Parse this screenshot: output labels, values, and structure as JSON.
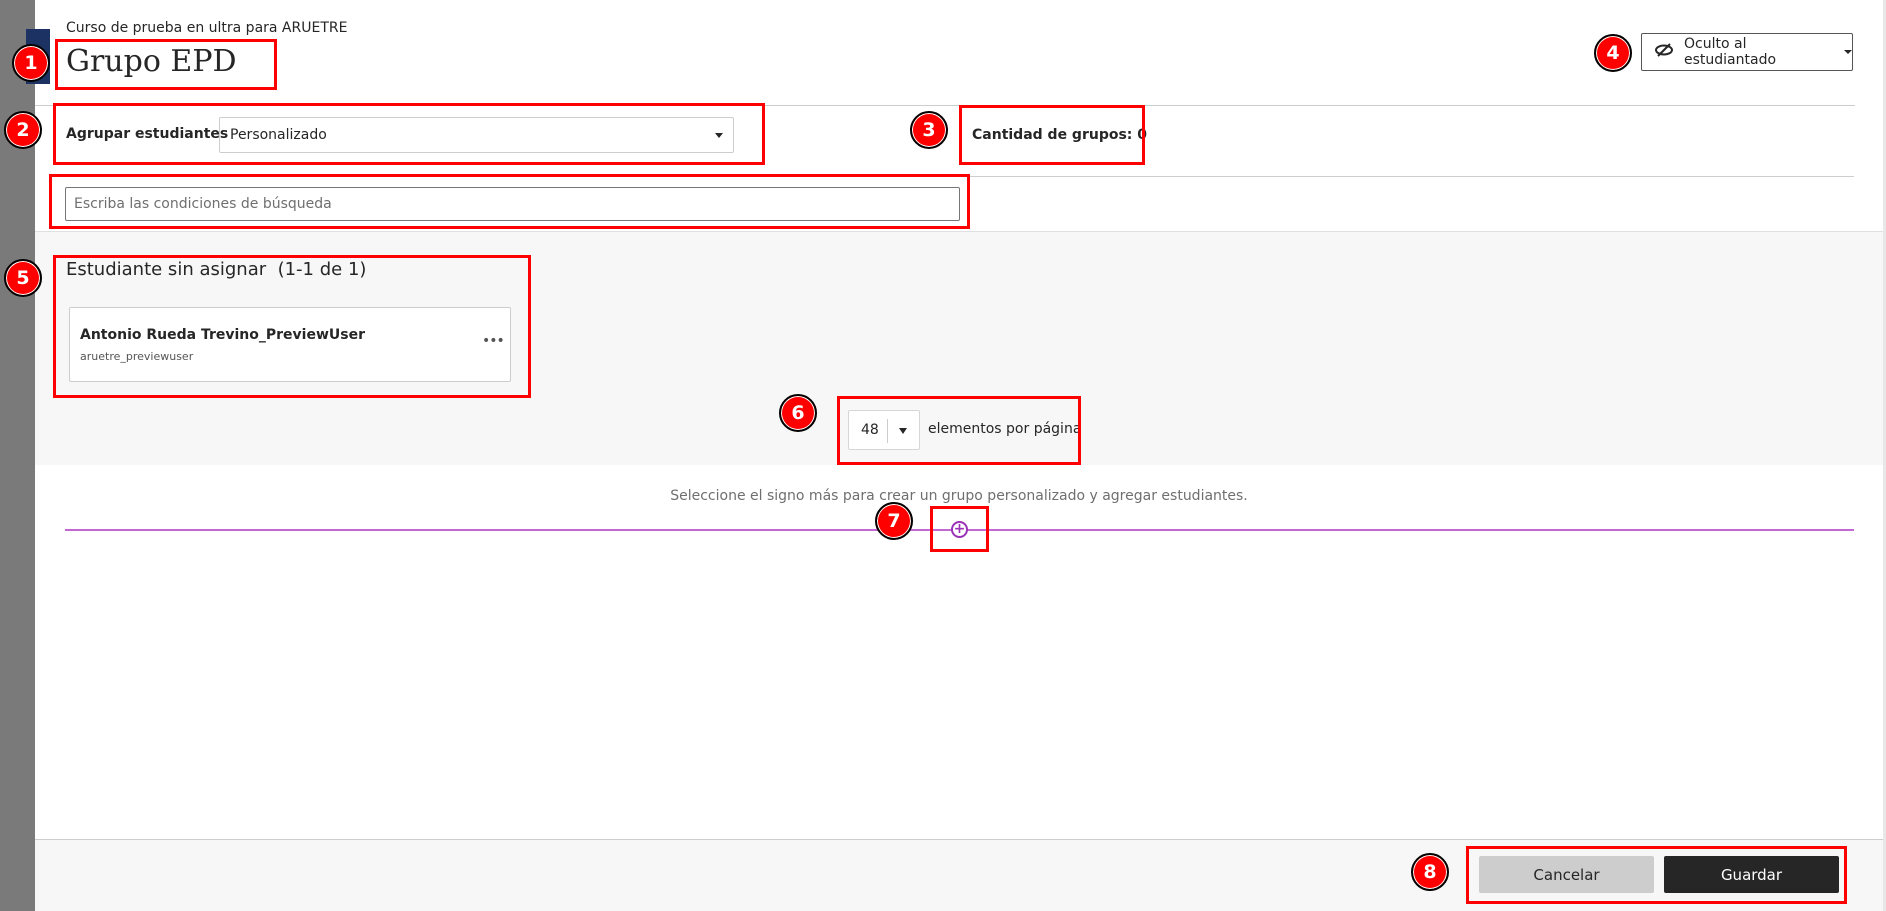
{
  "header": {
    "course_name": "Curso de prueba en ultra para ARUETRE",
    "title": "Grupo EPD",
    "visibility_label": "Oculto al estudiantado",
    "visibility_icon": "eye-slash-icon"
  },
  "grouping": {
    "label": "Agrupar estudiantes",
    "selected": "Personalizado",
    "group_count": "Cantidad de grupos: 0"
  },
  "search": {
    "placeholder": "Escriba las condiciones de búsqueda",
    "value": ""
  },
  "unassigned": {
    "title": "Estudiante sin asignar",
    "range": "(1-1 de 1)",
    "students": [
      {
        "name": "Antonio Rueda Trevino_PreviewUser",
        "username": "aruetre_previewuser",
        "more": "•••"
      }
    ]
  },
  "pagination": {
    "per_page": "48",
    "label": "elementos por página"
  },
  "groups": {
    "hint": "Seleccione el signo más para crear un grupo personalizado y agregar estudiantes.",
    "add_symbol": "+",
    "accent_color": "#9b33b8"
  },
  "footer": {
    "cancel_label": "Cancelar",
    "save_label": "Guardar"
  },
  "annotations": [
    "1",
    "2",
    "3",
    "4",
    "5",
    "6",
    "7",
    "8"
  ]
}
